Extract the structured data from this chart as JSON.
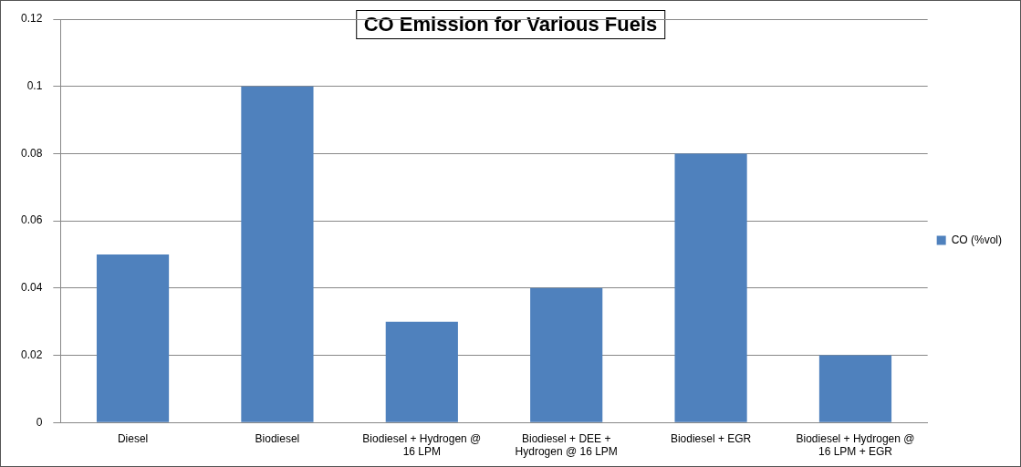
{
  "chart_data": {
    "type": "bar",
    "title": "CO Emission for Various Fuels",
    "categories": [
      "Diesel",
      "Biodiesel",
      "Biodiesel + Hydrogen @ 16 LPM",
      "Biodiesel + DEE + Hydrogen @ 16 LPM",
      "Biodiesel + EGR",
      "Biodiesel + Hydrogen @ 16 LPM + EGR"
    ],
    "series": [
      {
        "name": "CO (%vol)",
        "color": "#4f81bd",
        "values": [
          0.05,
          0.1,
          0.03,
          0.04,
          0.08,
          0.02
        ]
      }
    ],
    "ylim": [
      0,
      0.12
    ],
    "yticks": [
      0,
      0.02,
      0.04,
      0.06,
      0.08,
      0.1,
      0.12
    ],
    "grid": "y",
    "legend": "right"
  }
}
